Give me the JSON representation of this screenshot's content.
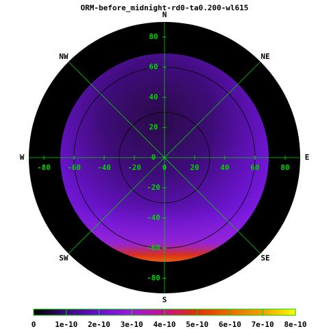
{
  "chart_data": {
    "type": "polar-map",
    "title": "ORM-before_midnight-rd0-ta0.200-wl615",
    "compass_labels": [
      "N",
      "NE",
      "E",
      "SE",
      "S",
      "SW",
      "W",
      "NW"
    ],
    "xlim": [
      -90,
      90
    ],
    "ylim": [
      -90,
      90
    ],
    "xticks": [
      -80,
      -60,
      -40,
      -20,
      0,
      20,
      40,
      60,
      80
    ],
    "yticks": [
      -80,
      -60,
      -40,
      -20,
      0,
      20,
      40,
      60,
      80
    ],
    "colorbar": {
      "range": [
        0,
        8e-10
      ],
      "ticks": [
        0,
        {
          "value": 1e-10,
          "label": "1e-10"
        },
        {
          "value": 2e-10,
          "label": "2e-10"
        },
        {
          "value": 3e-10,
          "label": "3e-10"
        },
        {
          "value": 4e-10,
          "label": "4e-10"
        },
        {
          "value": 5e-10,
          "label": "5e-10"
        },
        {
          "value": 6e-10,
          "label": "6e-10"
        },
        {
          "value": 7e-10,
          "label": "7e-10"
        },
        {
          "value": 8e-10,
          "label": "8e-10"
        }
      ],
      "colormap": [
        "#000000",
        "#3c0a78",
        "#6a10d0",
        "#9a1ad8",
        "#c8108a",
        "#e0300a",
        "#ee6a00",
        "#f4a000",
        "#ffff00"
      ]
    },
    "grid_color": "#00d000"
  }
}
